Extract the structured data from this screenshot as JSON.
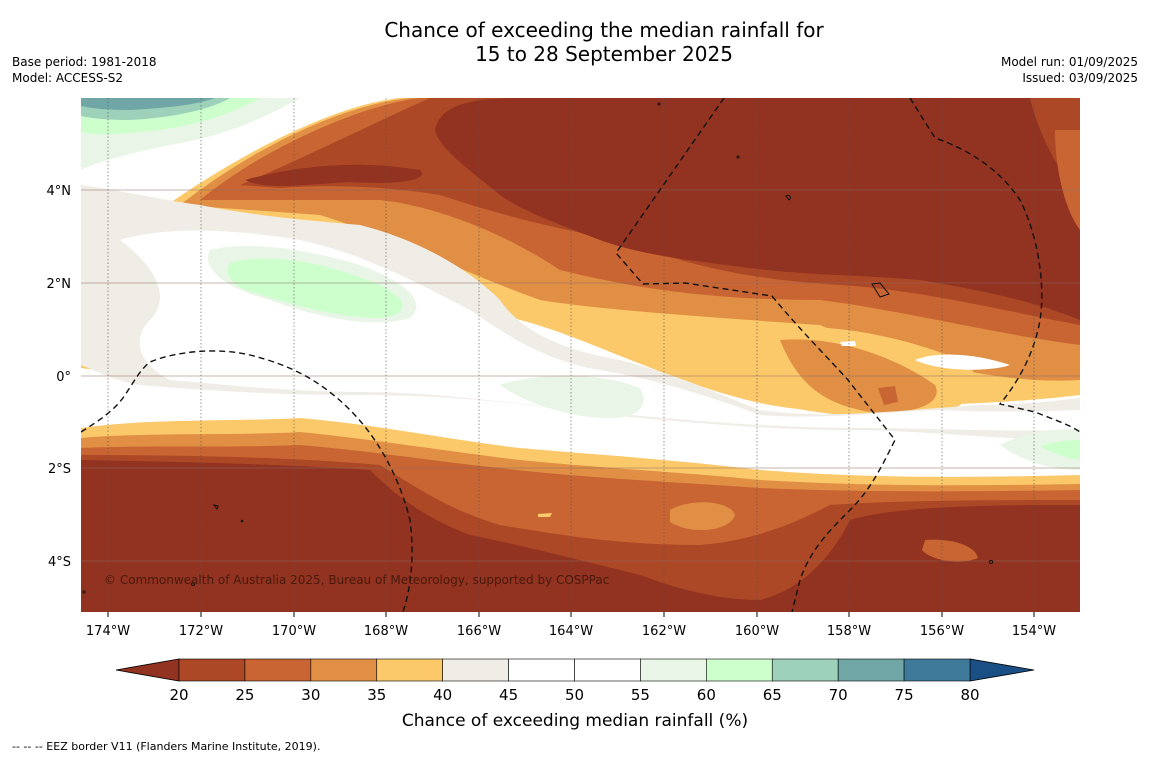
{
  "title_line1": "Chance of exceeding the median rainfall for",
  "title_line2": "15 to 28 September 2025",
  "base_period": "Base period: 1981-2018",
  "model": "Model: ACCESS-S2",
  "model_run": "Model run: 01/09/2025",
  "issued": "Issued: 03/09/2025",
  "credit": "© Commonwealth of Australia 2025, Bureau of Meteorology, supported by COSPPac",
  "footnote": "--  --  -- EEZ border V11 (Flanders Marine Institute, 2019).",
  "longitude_labels": [
    "174°W",
    "172°W",
    "170°W",
    "168°W",
    "166°W",
    "164°W",
    "162°W",
    "160°W",
    "158°W",
    "156°W",
    "154°W"
  ],
  "latitude_labels": [
    "4°N",
    "2°N",
    "0°",
    "2°S",
    "4°S"
  ],
  "colorbar": {
    "title": "Chance of exceeding median rainfall (%)",
    "ticks": [
      "20",
      "25",
      "30",
      "35",
      "40",
      "45",
      "50",
      "55",
      "60",
      "65",
      "70",
      "75",
      "80"
    ],
    "colors": [
      "#923220",
      "#ad4826",
      "#c96533",
      "#e08f45",
      "#fcc96a",
      "#f0ece6",
      "#ffffff",
      "#ffffff",
      "#e9f5e6",
      "#ccffcc",
      "#9dd1b9",
      "#70a6a6",
      "#3f7a9a"
    ],
    "under_color": "#923220",
    "over_color": "#1a4f86"
  },
  "colors": {
    "dry_deep": "#923220",
    "dry_2": "#ad4826",
    "dry_3": "#c96533",
    "dry_4": "#e08f45",
    "dry_5": "#fcc96a",
    "neutral": "#f0ece6",
    "wet_1": "#e9f5e6",
    "wet_2": "#ccffcc",
    "wet_3": "#9dd1b9",
    "wet_4": "#70a6a6"
  }
}
